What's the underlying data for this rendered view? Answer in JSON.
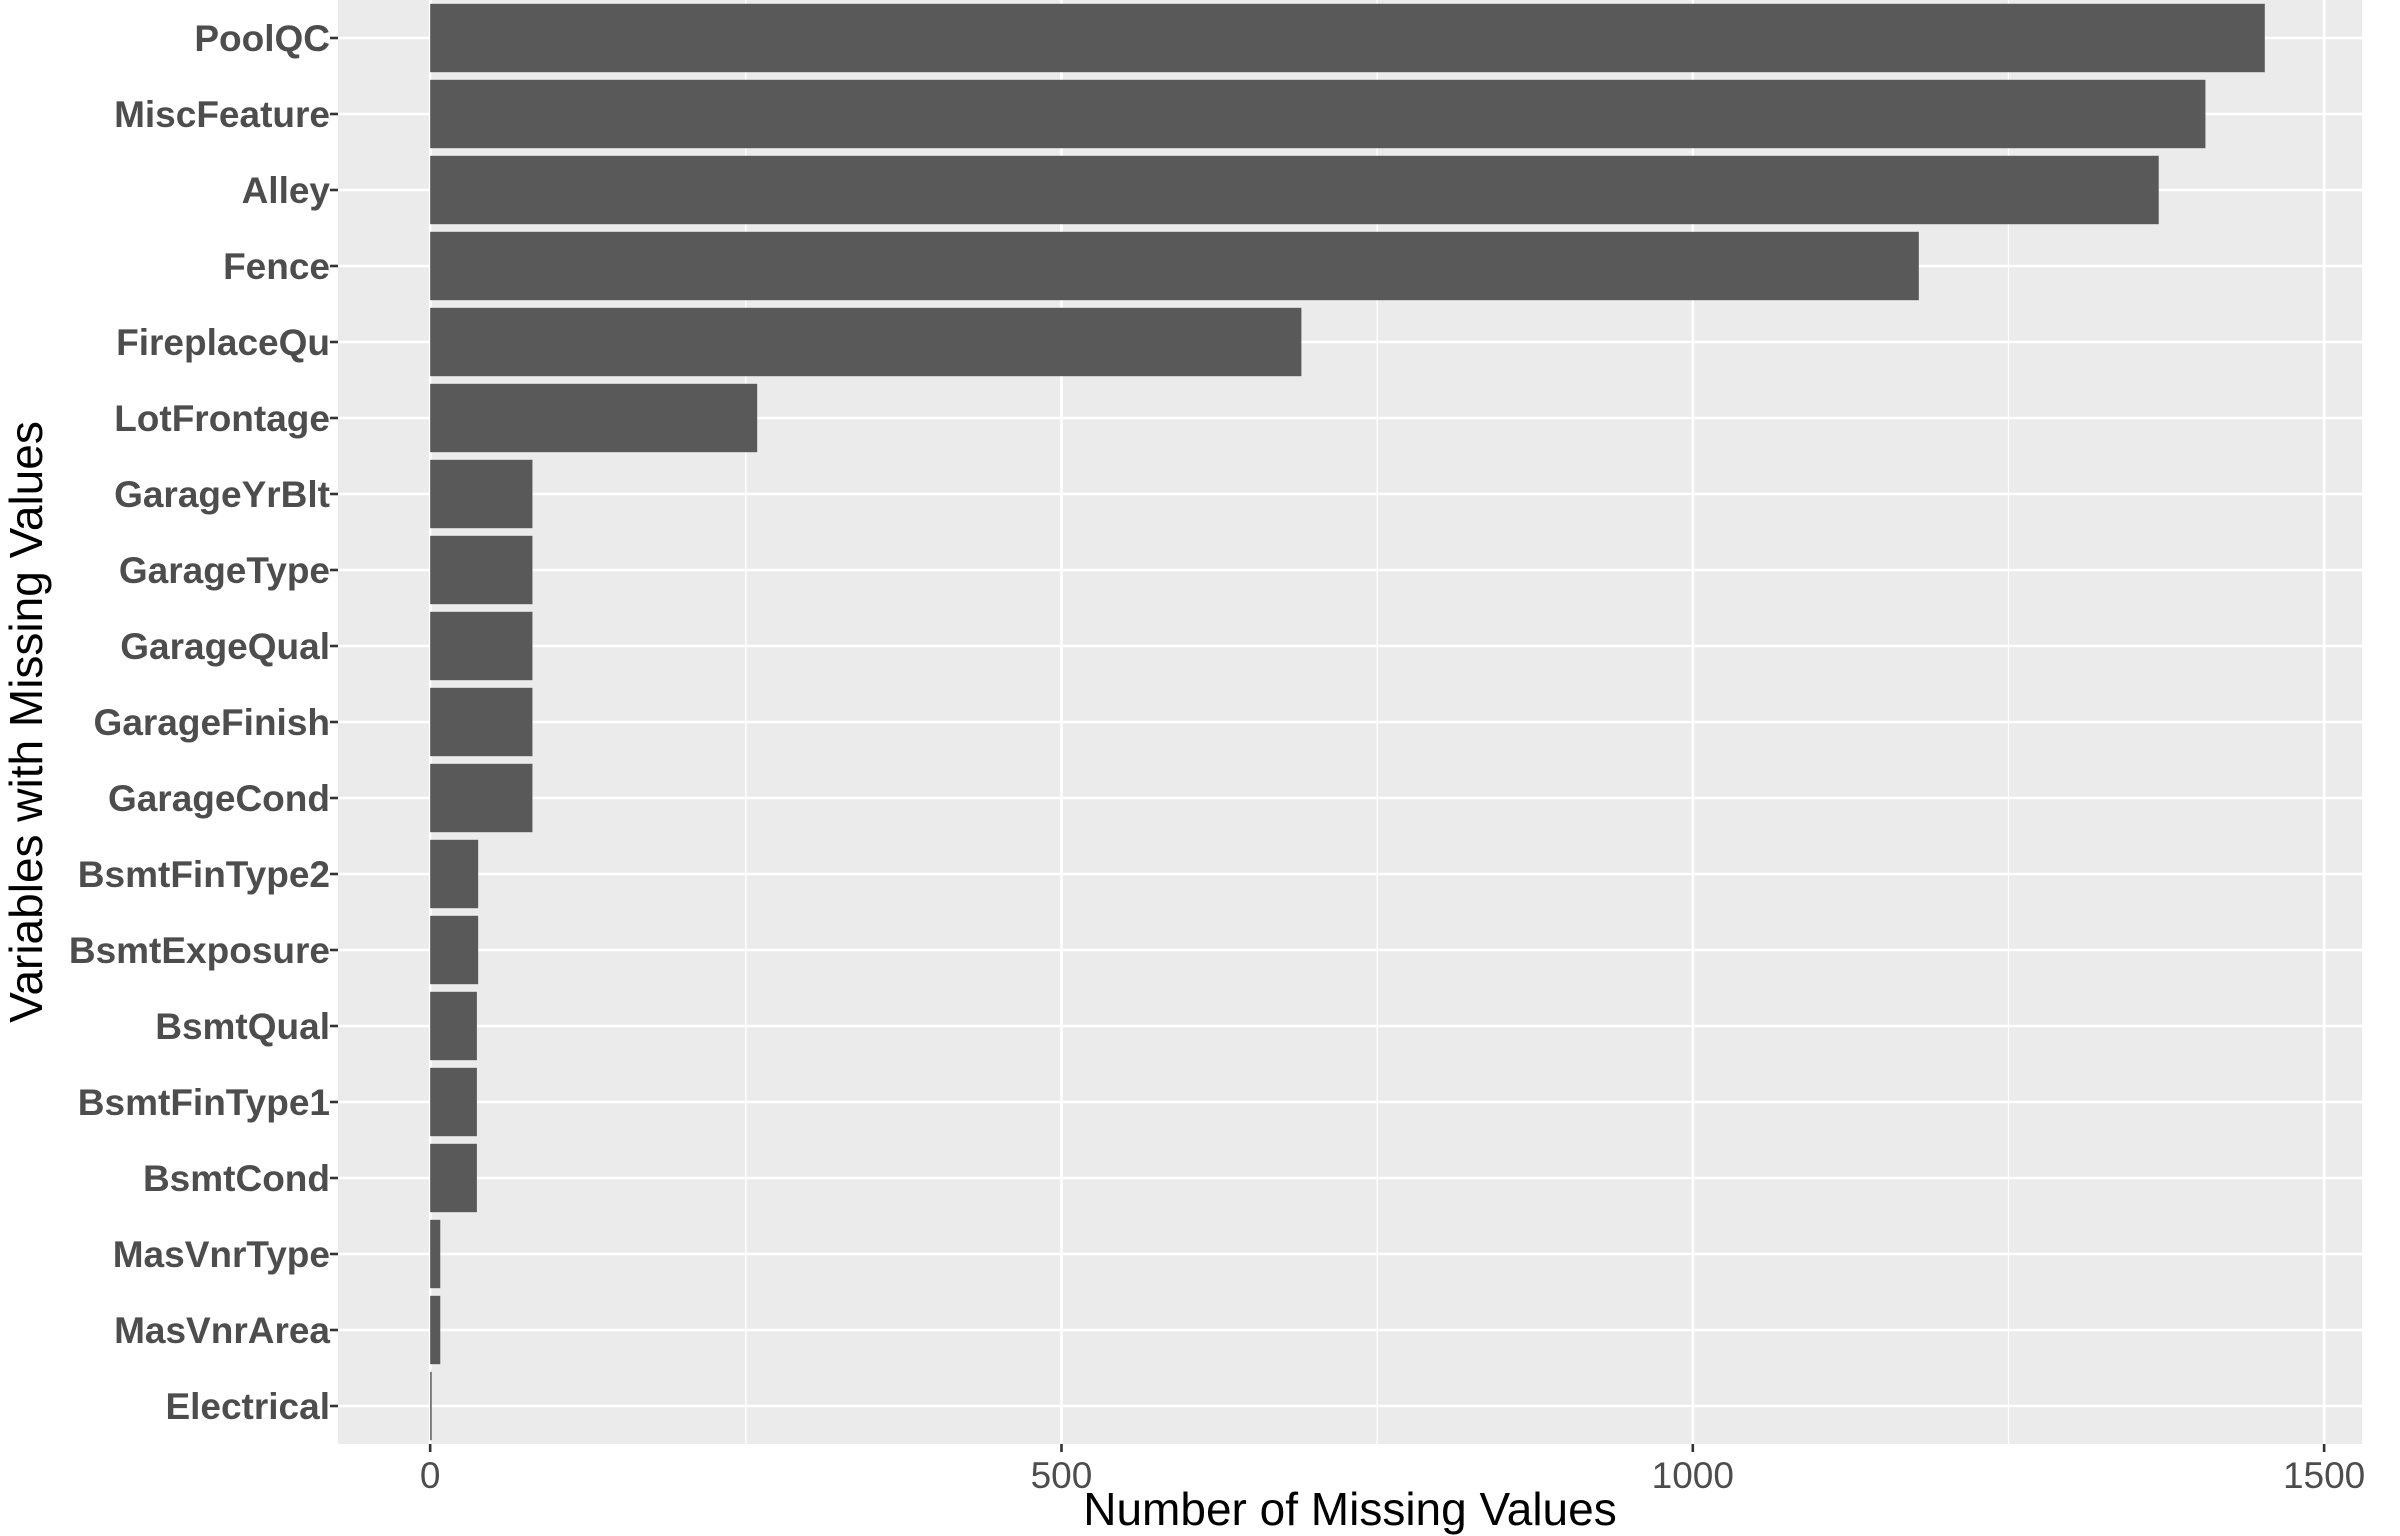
{
  "chart_data": {
    "type": "bar",
    "orientation": "horizontal",
    "categories": [
      "PoolQC",
      "MiscFeature",
      "Alley",
      "Fence",
      "FireplaceQu",
      "LotFrontage",
      "GarageYrBlt",
      "GarageType",
      "GarageQual",
      "GarageFinish",
      "GarageCond",
      "BsmtFinType2",
      "BsmtExposure",
      "BsmtQual",
      "BsmtFinType1",
      "BsmtCond",
      "MasVnrType",
      "MasVnrArea",
      "Electrical"
    ],
    "values": [
      1453,
      1406,
      1369,
      1179,
      690,
      259,
      81,
      81,
      81,
      81,
      81,
      38,
      38,
      37,
      37,
      37,
      8,
      8,
      1
    ],
    "xlabel": "Number of Missing Values",
    "ylabel": "Variables with Missing Values",
    "xlim": [
      -73,
      1530
    ],
    "xticks": [
      0,
      500,
      1000,
      1500
    ],
    "grid": true,
    "bar_color": "#595959",
    "panel_color": "#ebebeb",
    "grid_color": "#ffffff"
  }
}
